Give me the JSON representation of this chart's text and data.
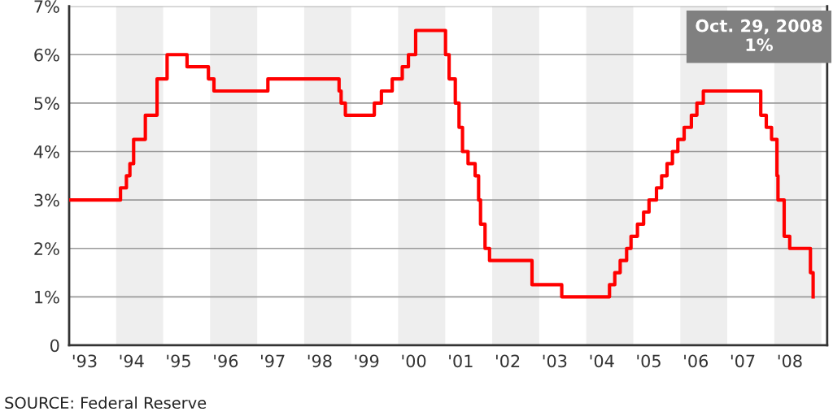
{
  "chart_data": {
    "type": "step",
    "x": [
      "1993-01-01",
      "1994-02-04",
      "1994-03-22",
      "1994-04-18",
      "1994-05-17",
      "1994-08-16",
      "1994-11-15",
      "1995-02-01",
      "1995-07-06",
      "1995-12-19",
      "1996-01-31",
      "1997-03-25",
      "1998-09-29",
      "1998-10-15",
      "1998-11-17",
      "1999-06-30",
      "1999-08-24",
      "1999-11-16",
      "2000-02-02",
      "2000-03-21",
      "2000-05-16",
      "2001-01-03",
      "2001-01-31",
      "2001-03-20",
      "2001-04-18",
      "2001-05-15",
      "2001-06-27",
      "2001-08-21",
      "2001-09-17",
      "2001-10-02",
      "2001-11-06",
      "2001-12-11",
      "2002-11-06",
      "2003-06-25",
      "2004-06-30",
      "2004-08-10",
      "2004-09-21",
      "2004-11-10",
      "2004-12-14",
      "2005-02-02",
      "2005-03-22",
      "2005-05-03",
      "2005-06-30",
      "2005-08-09",
      "2005-09-20",
      "2005-11-01",
      "2005-12-13",
      "2006-01-31",
      "2006-03-28",
      "2006-05-10",
      "2006-06-29",
      "2007-09-18",
      "2007-10-31",
      "2007-12-11",
      "2008-01-22",
      "2008-01-30",
      "2008-03-18",
      "2008-04-30",
      "2008-10-08",
      "2008-10-29"
    ],
    "series": [
      {
        "color": "#ff0000",
        "values": [
          3.0,
          3.25,
          3.5,
          3.75,
          4.25,
          4.75,
          5.5,
          6.0,
          5.75,
          5.5,
          5.25,
          5.5,
          5.25,
          5.0,
          4.75,
          5.0,
          5.25,
          5.5,
          5.75,
          6.0,
          6.5,
          6.0,
          5.5,
          5.0,
          4.5,
          4.0,
          3.75,
          3.5,
          3.0,
          2.5,
          2.0,
          1.75,
          1.25,
          1.0,
          1.25,
          1.5,
          1.75,
          2.0,
          2.25,
          2.5,
          2.75,
          3.0,
          3.25,
          3.5,
          3.75,
          4.0,
          4.25,
          4.5,
          4.75,
          5.0,
          5.25,
          4.75,
          4.5,
          4.25,
          3.5,
          3.0,
          2.25,
          2.0,
          1.5,
          1.0
        ]
      }
    ],
    "xlim": [
      "1993-01-01",
      "2009-02-15"
    ],
    "xticks": [
      {
        "value": "1993-05-01",
        "label": "'93"
      },
      {
        "value": "1994-05-01",
        "label": "'94"
      },
      {
        "value": "1995-05-01",
        "label": "'95"
      },
      {
        "value": "1996-05-01",
        "label": "'96"
      },
      {
        "value": "1997-05-01",
        "label": "'97"
      },
      {
        "value": "1998-05-01",
        "label": "'98"
      },
      {
        "value": "1999-05-01",
        "label": "'99"
      },
      {
        "value": "2000-05-01",
        "label": "'00"
      },
      {
        "value": "2001-05-01",
        "label": "'01"
      },
      {
        "value": "2002-05-01",
        "label": "'02"
      },
      {
        "value": "2003-05-01",
        "label": "'03"
      },
      {
        "value": "2004-05-01",
        "label": "'04"
      },
      {
        "value": "2005-05-01",
        "label": "'05"
      },
      {
        "value": "2006-05-01",
        "label": "'06"
      },
      {
        "value": "2007-05-01",
        "label": "'07"
      },
      {
        "value": "2008-05-01",
        "label": "'08"
      }
    ],
    "ylim": [
      0,
      7
    ],
    "yticks": [
      {
        "value": 0,
        "label": "0"
      },
      {
        "value": 1,
        "label": "1%"
      },
      {
        "value": 2,
        "label": "2%"
      },
      {
        "value": 3,
        "label": "3%"
      },
      {
        "value": 4,
        "label": "4%"
      },
      {
        "value": 5,
        "label": "5%"
      },
      {
        "value": 6,
        "label": "6%"
      },
      {
        "value": 7,
        "label": "7%"
      }
    ],
    "grid": "y",
    "bands": [
      {
        "axis": "x",
        "from": "1994-01-01",
        "to": "1995-01-01",
        "color": "#eeeeee"
      },
      {
        "axis": "x",
        "from": "1996-01-01",
        "to": "1997-01-01",
        "color": "#eeeeee"
      },
      {
        "axis": "x",
        "from": "1998-01-01",
        "to": "1999-01-01",
        "color": "#eeeeee"
      },
      {
        "axis": "x",
        "from": "2000-01-01",
        "to": "2001-01-01",
        "color": "#eeeeee"
      },
      {
        "axis": "x",
        "from": "2002-01-01",
        "to": "2003-01-01",
        "color": "#eeeeee"
      },
      {
        "axis": "x",
        "from": "2004-01-01",
        "to": "2005-01-01",
        "color": "#eeeeee"
      },
      {
        "axis": "x",
        "from": "2006-01-01",
        "to": "2007-01-01",
        "color": "#eeeeee"
      },
      {
        "axis": "x",
        "from": "2008-01-01",
        "to": "2009-01-01",
        "color": "#eeeeee"
      }
    ],
    "annotations": [
      "Oct. 29, 2008\n1%",
      "SOURCE: Federal Reserve"
    ]
  }
}
